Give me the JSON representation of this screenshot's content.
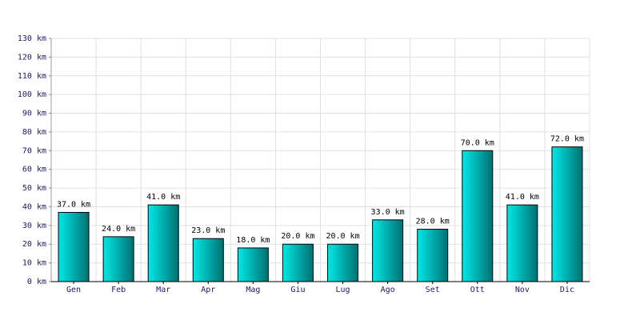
{
  "chart_data": {
    "type": "bar",
    "categories": [
      "Gen",
      "Feb",
      "Mar",
      "Apr",
      "Mag",
      "Giu",
      "Lug",
      "Ago",
      "Set",
      "Ott",
      "Nov",
      "Dic"
    ],
    "values": [
      37,
      24,
      41,
      23,
      18,
      20,
      20,
      33,
      28,
      70,
      41,
      72
    ],
    "value_labels": [
      "37.0 km",
      "24.0 km",
      "41.0 km",
      "23.0 km",
      "18.0 km",
      "20.0 km",
      "20.0 km",
      "33.0 km",
      "28.0 km",
      "70.0 km",
      "41.0 km",
      "72.0 km"
    ],
    "color": "#00e8e8",
    "ylim": [
      0,
      130
    ],
    "yticks": [
      {
        "value": 0,
        "label": "0 km"
      },
      {
        "value": 10,
        "label": "10 km"
      },
      {
        "value": 20,
        "label": "20 km"
      },
      {
        "value": 30,
        "label": "30 km"
      },
      {
        "value": 40,
        "label": "40 km"
      },
      {
        "value": 50,
        "label": "50 km"
      },
      {
        "value": 60,
        "label": "60 km"
      },
      {
        "value": 70,
        "label": "70 km"
      },
      {
        "value": 80,
        "label": "80 km"
      },
      {
        "value": 90,
        "label": "90 km"
      },
      {
        "value": 100,
        "label": "100 km"
      },
      {
        "value": 110,
        "label": "110 km"
      },
      {
        "value": 120,
        "label": "120 km"
      },
      {
        "value": 130,
        "label": "130 km"
      }
    ],
    "grid": true
  }
}
